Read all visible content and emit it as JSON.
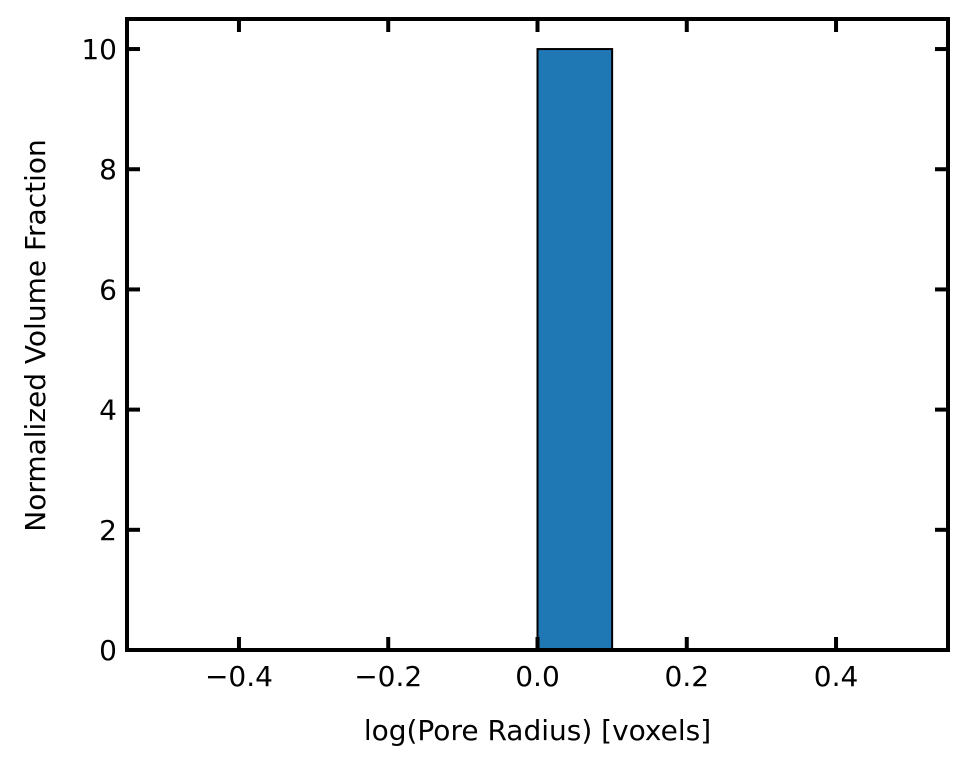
{
  "chart_data": {
    "type": "bar",
    "title": "",
    "xlabel": "log(Pore Radius) [voxels]",
    "ylabel": "Normalized Volume Fraction",
    "xlim": [
      -0.55,
      0.55
    ],
    "ylim": [
      0,
      10.5
    ],
    "xticks": [
      -0.4,
      -0.2,
      0.0,
      0.2,
      0.4
    ],
    "xtick_labels": [
      "−0.4",
      "−0.2",
      "0.0",
      "0.2",
      "0.4"
    ],
    "yticks": [
      0,
      2,
      4,
      6,
      8,
      10
    ],
    "ytick_labels": [
      "0",
      "2",
      "4",
      "6",
      "8",
      "10"
    ],
    "grid": false,
    "bars": [
      {
        "x_start": 0.0,
        "x_end": 0.1,
        "value": 10
      }
    ],
    "bar_color": "#1f77b4",
    "bar_edge_color": "#000000"
  }
}
